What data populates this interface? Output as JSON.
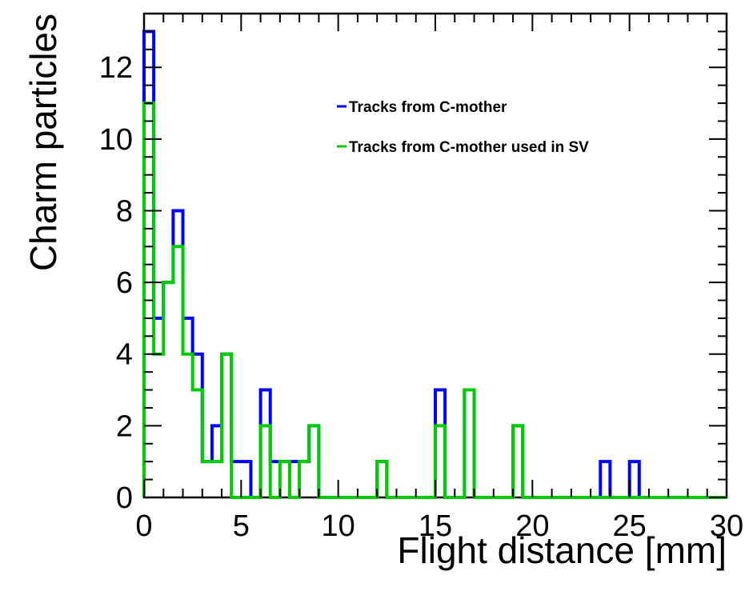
{
  "chart_data": {
    "type": "histogram",
    "title": "",
    "xlabel": "Flight distance [mm]",
    "ylabel": "Charm particles",
    "xlim": [
      0,
      30
    ],
    "ylim": [
      0,
      13.5
    ],
    "bin_width": 0.5,
    "x_ticks": [
      "0",
      "5",
      "10",
      "15",
      "20",
      "25",
      "30"
    ],
    "y_ticks": [
      "0",
      "2",
      "4",
      "6",
      "8",
      "10",
      "12"
    ],
    "grid": false,
    "legend_position": "top-right",
    "series": [
      {
        "name": "Tracks from C-mother",
        "color": "#0000ff",
        "values": [
          13,
          5,
          6,
          8,
          5,
          4,
          1,
          2,
          4,
          1,
          1,
          0,
          3,
          1,
          1,
          1,
          1,
          2,
          0,
          0,
          0,
          0,
          0,
          0,
          1,
          0,
          0,
          0,
          0,
          0,
          3,
          0,
          0,
          3,
          0,
          0,
          0,
          0,
          2,
          0,
          0,
          0,
          0,
          0,
          0,
          0,
          0,
          1,
          0,
          0,
          1,
          0,
          0,
          0,
          0,
          0,
          0,
          0,
          0,
          0
        ]
      },
      {
        "name": "Tracks from C-mother used in SV",
        "color": "#00cc00",
        "values": [
          11,
          4,
          6,
          7,
          4,
          3,
          1,
          1,
          4,
          0,
          0,
          0,
          2,
          0,
          1,
          0,
          1,
          2,
          0,
          0,
          0,
          0,
          0,
          0,
          1,
          0,
          0,
          0,
          0,
          0,
          2,
          0,
          0,
          3,
          0,
          0,
          0,
          0,
          2,
          0,
          0,
          0,
          0,
          0,
          0,
          0,
          0,
          0,
          0,
          0,
          0,
          0,
          0,
          0,
          0,
          0,
          0,
          0,
          0,
          0
        ]
      }
    ]
  }
}
